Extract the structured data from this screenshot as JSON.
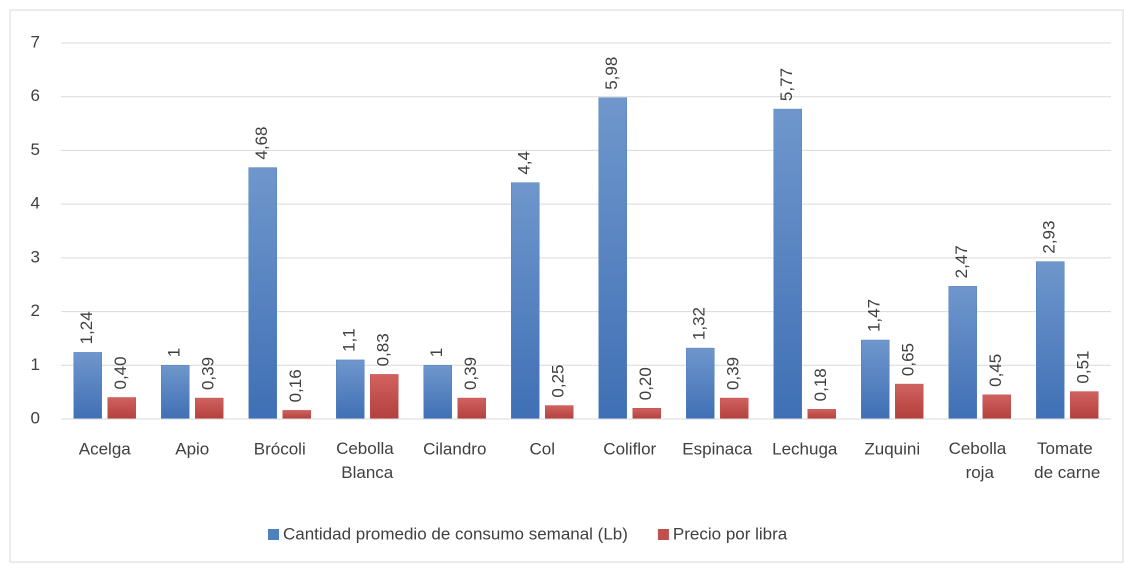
{
  "chart_data": {
    "type": "bar",
    "categories": [
      "Acelga",
      "Apio",
      "Brócoli",
      "Cebolla Blanca",
      "Cilandro",
      "Col",
      "Coliflor",
      "Espinaca",
      "Lechuga",
      "Zuquini",
      "Cebolla roja",
      "Tomate de carne"
    ],
    "series": [
      {
        "name": "Cantidad promedio de consumo semanal (Lb)",
        "color": "#4f81bd",
        "values": [
          1.24,
          1,
          4.68,
          1.1,
          1,
          4.4,
          5.98,
          1.32,
          5.77,
          1.47,
          2.47,
          2.93
        ],
        "value_labels": [
          "1,24",
          "1",
          "4,68",
          "1,1",
          "1",
          "4,4",
          "5,98",
          "1,32",
          "5,77",
          "1,47",
          "2,47",
          "2,93"
        ]
      },
      {
        "name": "Precio por libra",
        "color": "#c0504d",
        "values": [
          0.4,
          0.39,
          0.16,
          0.83,
          0.39,
          0.25,
          0.2,
          0.39,
          0.18,
          0.65,
          0.45,
          0.51
        ],
        "value_labels": [
          "0,40",
          "0,39",
          "0,16",
          "0,83",
          "0,39",
          "0,25",
          "0,20",
          "0,39",
          "0,18",
          "0,65",
          "0,45",
          "0,51"
        ]
      }
    ],
    "ylim": [
      0,
      7
    ],
    "yticks": [
      0,
      1,
      2,
      3,
      4,
      5,
      6,
      7
    ],
    "grid": true,
    "legend": "bottom"
  }
}
